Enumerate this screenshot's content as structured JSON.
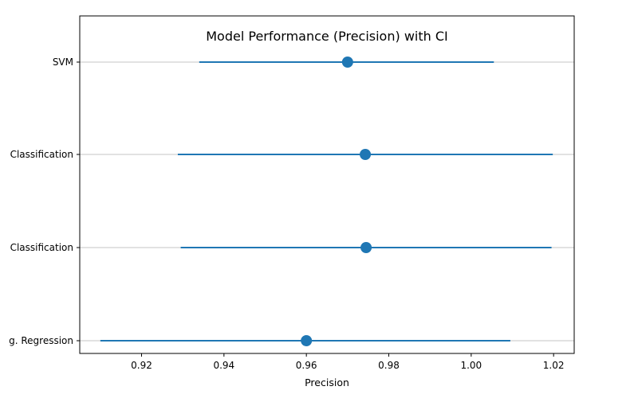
{
  "chart_data": {
    "type": "scatter",
    "title": "Model Performance (Precision) with CI",
    "xlabel": "Precision",
    "ylabel": "",
    "xlim": [
      0.905,
      1.025
    ],
    "grid": "y-only",
    "colors": {
      "series": "#1f77b4",
      "grid": "#b0b0b0",
      "axis": "#000000"
    },
    "xticks": [
      0.92,
      0.94,
      0.96,
      0.98,
      1.0,
      1.02
    ],
    "xtick_labels": [
      "0.92",
      "0.94",
      "0.96",
      "0.98",
      "1.00",
      "1.02"
    ],
    "categories": [
      "g. Regression",
      "Classification",
      "Classification",
      "SVM"
    ],
    "points": [
      {
        "label": "g. Regression",
        "value": 0.96,
        "ci_low": 0.91,
        "ci_high": 1.0095
      },
      {
        "label": "Classification",
        "value": 0.9745,
        "ci_low": 0.9295,
        "ci_high": 1.0195
      },
      {
        "label": "Classification",
        "value": 0.9743,
        "ci_low": 0.9288,
        "ci_high": 1.0198
      },
      {
        "label": "SVM",
        "value": 0.97,
        "ci_low": 0.934,
        "ci_high": 1.0055
      }
    ]
  }
}
